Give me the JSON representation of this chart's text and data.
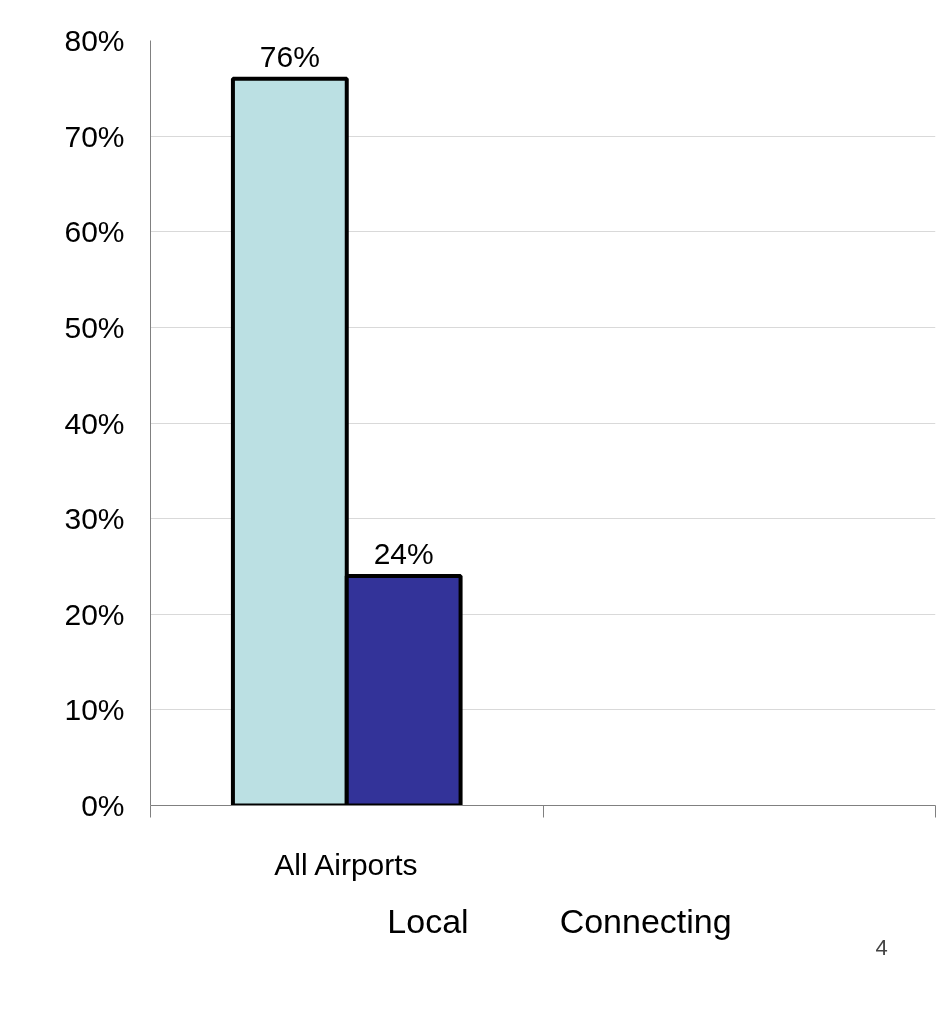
{
  "chart_data": {
    "type": "bar",
    "categories": [
      "All Airports",
      null
    ],
    "series": [
      {
        "name": "Local",
        "color": "#bbe0e3",
        "values": [
          76,
          null
        ],
        "value_labels": [
          "76%",
          null
        ]
      },
      {
        "name": "Connecting",
        "color": "#333399",
        "values": [
          24,
          null
        ],
        "value_labels": [
          "24%",
          null
        ]
      }
    ],
    "ylim": [
      0,
      80
    ],
    "yticks": [
      {
        "value": 0,
        "label": "0%"
      },
      {
        "value": 10,
        "label": "10%"
      },
      {
        "value": 20,
        "label": "20%"
      },
      {
        "value": 30,
        "label": "30%"
      },
      {
        "value": 40,
        "label": "40%"
      },
      {
        "value": 50,
        "label": "50%"
      },
      {
        "value": 60,
        "label": "60%"
      },
      {
        "value": 70,
        "label": "70%"
      },
      {
        "value": 80,
        "label": "80%"
      }
    ],
    "grid": "y",
    "legend": "bottom",
    "annotations": [
      "4"
    ]
  }
}
